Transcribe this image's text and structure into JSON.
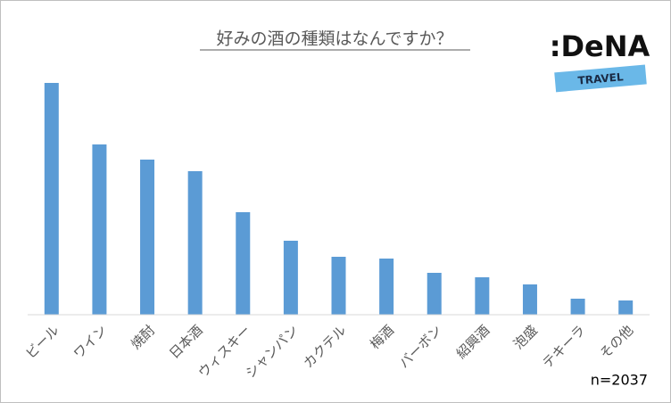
{
  "chart_data": {
    "type": "bar",
    "title": "好みの酒の種類はなんですか？",
    "categories": [
      "ビール",
      "ワイン",
      "焼酎",
      "日本酒",
      "ウィスキー",
      "シャンパン",
      "カクテル",
      "梅酒",
      "バーボン",
      "紹興酒",
      "泡盛",
      "テキーラ",
      "その他"
    ],
    "values": [
      260,
      191,
      174,
      161,
      115,
      83,
      65,
      63,
      47,
      42,
      34,
      18,
      16
    ],
    "color": "#5b9bd5",
    "ylim": [
      0,
      260
    ],
    "grid": false,
    "note": "n=2037",
    "logo": {
      "brand": ":DeNA",
      "sub": "TRAVEL"
    }
  }
}
